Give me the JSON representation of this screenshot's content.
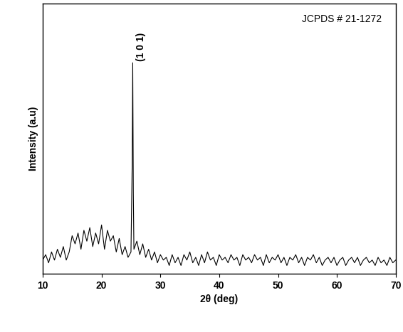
{
  "chart_data": {
    "type": "line",
    "x_label": "2θ (deg)",
    "y_label": "Intensity (a.u)",
    "x": [
      10,
      10.5,
      11,
      11.5,
      12,
      12.5,
      13,
      13.5,
      14,
      14.5,
      15,
      15.5,
      16,
      16.5,
      17,
      17.5,
      18,
      18.5,
      19,
      19.5,
      20,
      20.5,
      21,
      21.5,
      22,
      22.5,
      23,
      23.5,
      24,
      24.5,
      25,
      25.2,
      25.3,
      25.4,
      25.5,
      26,
      26.5,
      27,
      27.5,
      28,
      28.5,
      29,
      29.5,
      30,
      30.5,
      31,
      31.5,
      32,
      32.5,
      33,
      33.5,
      34,
      34.5,
      35,
      35.5,
      36,
      36.5,
      37,
      37.5,
      38,
      38.5,
      39,
      39.5,
      40,
      40.5,
      41,
      41.5,
      42,
      42.5,
      43,
      43.5,
      44,
      44.5,
      45,
      45.5,
      46,
      46.5,
      47,
      47.5,
      48,
      48.5,
      49,
      49.5,
      50,
      50.5,
      51,
      51.5,
      52,
      52.5,
      53,
      53.5,
      54,
      54.5,
      55,
      55.5,
      56,
      56.5,
      57,
      57.5,
      58,
      58.5,
      59,
      59.5,
      60,
      60.5,
      61,
      61.5,
      62,
      62.5,
      63,
      63.5,
      64,
      64.5,
      65,
      65.5,
      66,
      66.5,
      67,
      67.5,
      68,
      68.5,
      69,
      69.5,
      70
    ],
    "values": [
      5,
      7,
      4,
      8,
      5,
      9,
      6,
      10,
      5,
      8,
      14,
      11,
      15,
      9,
      16,
      12,
      17,
      10,
      15,
      11,
      18,
      9,
      16,
      12,
      14,
      8,
      13,
      7,
      10,
      6,
      8,
      40,
      78,
      30,
      9,
      12,
      7,
      11,
      6,
      9,
      5,
      8,
      4,
      7,
      5,
      6,
      3,
      7,
      4,
      6,
      3,
      7,
      5,
      8,
      4,
      6,
      3,
      7,
      4,
      8,
      5,
      6,
      3,
      7,
      5,
      6,
      4,
      7,
      5,
      6,
      3,
      7,
      5,
      6,
      4,
      7,
      5,
      6,
      3,
      7,
      4,
      6,
      5,
      7,
      4,
      6,
      3,
      6,
      5,
      7,
      4,
      6,
      3,
      6,
      5,
      7,
      4,
      6,
      3,
      5,
      6,
      4,
      6,
      3,
      5,
      6,
      3,
      5,
      6,
      4,
      6,
      3,
      5,
      6,
      4,
      5,
      3,
      6,
      4,
      5,
      3,
      6,
      4,
      5
    ],
    "color": "#000000",
    "xlim": [
      10,
      70
    ],
    "xticks": [
      10,
      20,
      30,
      40,
      50,
      60,
      70
    ],
    "ylim": [
      0,
      100
    ],
    "yticks": [],
    "tick_labels": "x",
    "annotations": [
      {
        "text": "(1 0 1)"
      },
      {
        "text": "JCPDS # 21-1272"
      }
    ]
  }
}
